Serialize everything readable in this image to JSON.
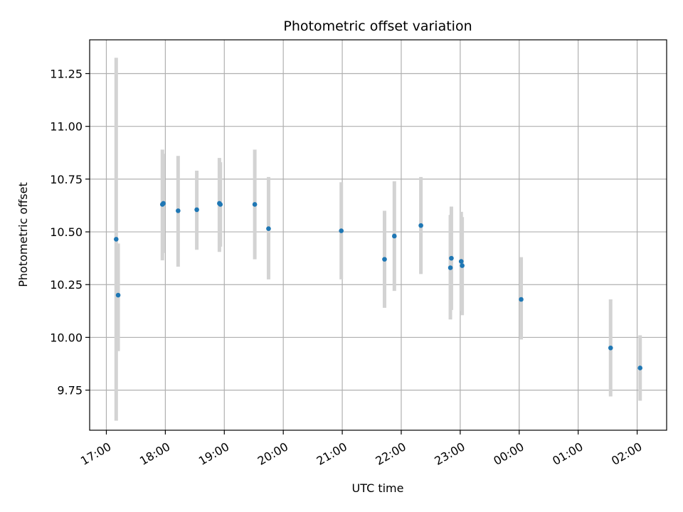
{
  "chart_data": {
    "type": "scatter",
    "title": "Photometric offset variation",
    "xlabel": "UTC time",
    "ylabel": "Photometric offset",
    "grid": true,
    "xlim": [
      "16:43",
      "02:30"
    ],
    "ylim": [
      9.56,
      11.41
    ],
    "x_ticks": [
      "17:00",
      "18:00",
      "19:00",
      "20:00",
      "21:00",
      "22:00",
      "23:00",
      "00:00",
      "01:00",
      "02:00"
    ],
    "y_ticks": [
      "9.75",
      "10.00",
      "10.25",
      "10.50",
      "10.75",
      "11.00",
      "11.25"
    ],
    "colors": {
      "point": "#1f77b4",
      "errorbar": "#d3d3d3",
      "grid": "#b0b0b0"
    },
    "points": [
      {
        "x": "17:10",
        "y": 10.465,
        "err_low": 9.605,
        "err_high": 11.325
      },
      {
        "x": "17:12",
        "y": 10.2,
        "err_low": 9.935,
        "err_high": 10.445
      },
      {
        "x": "17:57",
        "y": 10.63,
        "err_low": 10.365,
        "err_high": 10.89
      },
      {
        "x": "17:58",
        "y": 10.635,
        "err_low": 10.4,
        "err_high": 10.87
      },
      {
        "x": "18:13",
        "y": 10.6,
        "err_low": 10.335,
        "err_high": 10.86
      },
      {
        "x": "18:32",
        "y": 10.605,
        "err_low": 10.415,
        "err_high": 10.79
      },
      {
        "x": "18:55",
        "y": 10.635,
        "err_low": 10.405,
        "err_high": 10.85
      },
      {
        "x": "18:56",
        "y": 10.63,
        "err_low": 10.43,
        "err_high": 10.83
      },
      {
        "x": "19:31",
        "y": 10.63,
        "err_low": 10.37,
        "err_high": 10.89
      },
      {
        "x": "19:45",
        "y": 10.515,
        "err_low": 10.275,
        "err_high": 10.76
      },
      {
        "x": "20:59",
        "y": 10.505,
        "err_low": 10.275,
        "err_high": 10.735
      },
      {
        "x": "21:43",
        "y": 10.37,
        "err_low": 10.14,
        "err_high": 10.6
      },
      {
        "x": "21:53",
        "y": 10.48,
        "err_low": 10.22,
        "err_high": 10.74
      },
      {
        "x": "22:20",
        "y": 10.53,
        "err_low": 10.3,
        "err_high": 10.76
      },
      {
        "x": "22:50",
        "y": 10.33,
        "err_low": 10.085,
        "err_high": 10.58
      },
      {
        "x": "22:51",
        "y": 10.375,
        "err_low": 10.13,
        "err_high": 10.62
      },
      {
        "x": "23:01",
        "y": 10.36,
        "err_low": 10.125,
        "err_high": 10.595
      },
      {
        "x": "23:02",
        "y": 10.34,
        "err_low": 10.105,
        "err_high": 10.57
      },
      {
        "x": "00:02",
        "y": 10.18,
        "err_low": 9.99,
        "err_high": 10.38
      },
      {
        "x": "01:33",
        "y": 9.95,
        "err_low": 9.72,
        "err_high": 10.18
      },
      {
        "x": "02:03",
        "y": 9.855,
        "err_low": 9.7,
        "err_high": 10.01
      }
    ]
  }
}
